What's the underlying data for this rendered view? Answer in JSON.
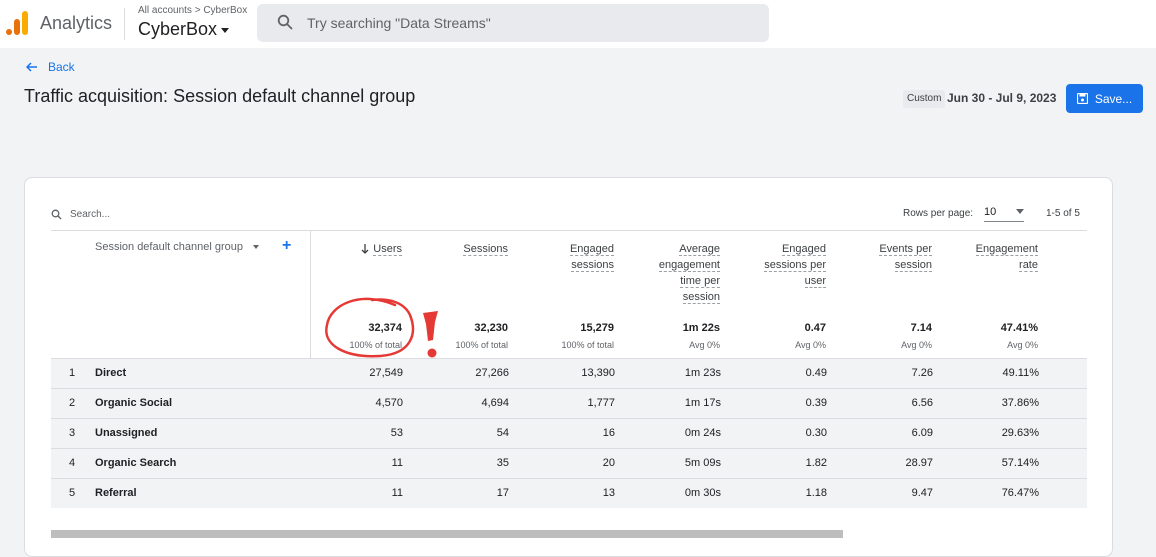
{
  "app": {
    "name": "Analytics",
    "breadcrumb": "All accounts > CyberBox",
    "account": "CyberBox"
  },
  "search": {
    "placeholder": "Try searching \"Data Streams\""
  },
  "page": {
    "back_label": "Back",
    "title": "Traffic acquisition: Session default channel group"
  },
  "date": {
    "chip": "Custom",
    "range": "Jun 30 - Jul 9, 2023"
  },
  "save_label": "Save...",
  "table": {
    "search_placeholder": "Search...",
    "rows_per_page_label": "Rows per page:",
    "rows_per_page_value": "10",
    "range": "1-5 of 5",
    "dimension_header": "Session default channel group",
    "metrics": [
      {
        "label": "Users",
        "total": "32,374",
        "sub": "100% of total"
      },
      {
        "label": "Sessions",
        "total": "32,230",
        "sub": "100% of total"
      },
      {
        "label": "Engaged sessions",
        "total": "15,279",
        "sub": "100% of total"
      },
      {
        "label": "Average engagement time per session",
        "total": "1m 22s",
        "sub": "Avg 0%"
      },
      {
        "label": "Engaged sessions per user",
        "total": "0.47",
        "sub": "Avg 0%"
      },
      {
        "label": "Events per session",
        "total": "7.14",
        "sub": "Avg 0%"
      },
      {
        "label": "Engagement rate",
        "total": "47.41%",
        "sub": "Avg 0%"
      }
    ],
    "rows": [
      {
        "index": "1",
        "name": "Direct",
        "values": [
          "27,549",
          "27,266",
          "13,390",
          "1m 23s",
          "0.49",
          "7.26",
          "49.11%"
        ]
      },
      {
        "index": "2",
        "name": "Organic Social",
        "values": [
          "4,570",
          "4,694",
          "1,777",
          "1m 17s",
          "0.39",
          "6.56",
          "37.86%"
        ]
      },
      {
        "index": "3",
        "name": "Unassigned",
        "values": [
          "53",
          "54",
          "16",
          "0m 24s",
          "0.30",
          "6.09",
          "29.63%"
        ]
      },
      {
        "index": "4",
        "name": "Organic Search",
        "values": [
          "11",
          "35",
          "20",
          "5m 09s",
          "1.82",
          "28.97",
          "57.14%"
        ]
      },
      {
        "index": "5",
        "name": "Referral",
        "values": [
          "11",
          "17",
          "13",
          "0m 30s",
          "1.18",
          "9.47",
          "76.47%"
        ]
      }
    ]
  },
  "colors": {
    "accent": "#1a73e8",
    "annotation": "#e53935",
    "logo_orange": "#e8710a",
    "logo_yellow": "#f9ab00"
  }
}
